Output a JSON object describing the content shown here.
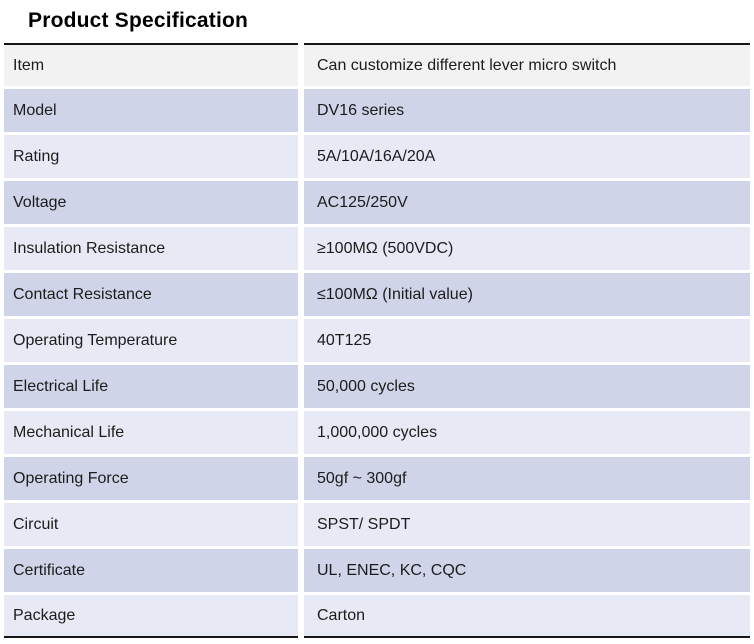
{
  "title": "Product Specification",
  "colors": {
    "header_row_bg": "#f2f2f2",
    "stripe_dark": "#cfd4e8",
    "stripe_light": "#e7e9f4",
    "rule_color": "#161616",
    "text_color": "#1c1c1c"
  },
  "table": {
    "rows": [
      {
        "label": "Item",
        "value": "Can customize different lever micro switch"
      },
      {
        "label": "Model",
        "value": "DV16 series"
      },
      {
        "label": "Rating",
        "value": "5A/10A/16A/20A"
      },
      {
        "label": "Voltage",
        "value": "AC125/250V"
      },
      {
        "label": "Insulation Resistance",
        "value": "≥100MΩ (500VDC)"
      },
      {
        "label": "Contact Resistance",
        "value": "≤100MΩ (Initial value)"
      },
      {
        "label": "Operating Temperature",
        "value": "40T125"
      },
      {
        "label": "Electrical Life",
        "value": "50,000 cycles"
      },
      {
        "label": "Mechanical Life",
        "value": "1,000,000 cycles"
      },
      {
        "label": "Operating Force",
        "value": "50gf ~ 300gf"
      },
      {
        "label": "Circuit",
        "value": "SPST/ SPDT"
      },
      {
        "label": "Certificate",
        "value": "UL, ENEC, KC, CQC"
      },
      {
        "label": "Package",
        "value": "Carton"
      }
    ]
  }
}
